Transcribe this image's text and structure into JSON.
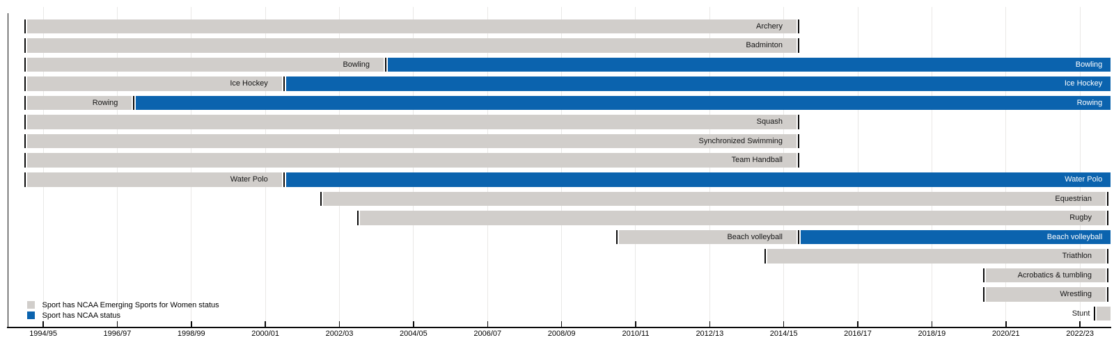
{
  "chart_data": {
    "type": "gantt",
    "title": "",
    "x_axis": {
      "range_start": 1994.0,
      "range_end": 2023.4,
      "ticks": [
        {
          "label": "1994/95",
          "year": 1994.5
        },
        {
          "label": "1996/97",
          "year": 1996.5
        },
        {
          "label": "1998/99",
          "year": 1998.5
        },
        {
          "label": "2000/01",
          "year": 2000.5
        },
        {
          "label": "2002/03",
          "year": 2002.5
        },
        {
          "label": "2004/05",
          "year": 2004.5
        },
        {
          "label": "2006/07",
          "year": 2006.5
        },
        {
          "label": "2008/09",
          "year": 2008.5
        },
        {
          "label": "2010/11",
          "year": 2010.5
        },
        {
          "label": "2012/13",
          "year": 2012.5
        },
        {
          "label": "2014/15",
          "year": 2014.5
        },
        {
          "label": "2016/17",
          "year": 2016.5
        },
        {
          "label": "2018/19",
          "year": 2018.5
        },
        {
          "label": "2020/21",
          "year": 2020.5
        },
        {
          "label": "2022/23",
          "year": 2022.5
        }
      ]
    },
    "legend": [
      {
        "status": "emerging",
        "label": "Sport has NCAA Emerging Sports for Women status",
        "color": "#d1cecb"
      },
      {
        "status": "ncaa",
        "label": "Sport has NCAA status",
        "color": "#0b63ae"
      }
    ],
    "colors": {
      "emerging": "#d1cecb",
      "ncaa": "#0b63ae",
      "gridline": "#e9e8e6",
      "axis": "#0a0a0a",
      "label_dark": "#141414",
      "label_light": "#ffffff"
    },
    "sports": [
      {
        "name": "Archery",
        "final_tick": true,
        "label_outside": false,
        "segments": [
          {
            "status": "emerging",
            "start": 1994.0,
            "end": 2014.9,
            "label": "Archery"
          }
        ]
      },
      {
        "name": "Badminton",
        "final_tick": true,
        "label_outside": false,
        "segments": [
          {
            "status": "emerging",
            "start": 1994.0,
            "end": 2014.9,
            "label": "Badminton"
          }
        ]
      },
      {
        "name": "Bowling",
        "final_tick": false,
        "label_outside": false,
        "segments": [
          {
            "status": "emerging",
            "start": 1994.0,
            "end": 2003.75,
            "label": "Bowling"
          },
          {
            "status": "ncaa",
            "start": 2003.75,
            "end": 2023.33,
            "label": "Bowling"
          }
        ]
      },
      {
        "name": "Ice Hockey",
        "final_tick": false,
        "label_outside": false,
        "segments": [
          {
            "status": "emerging",
            "start": 1994.0,
            "end": 2001.0,
            "label": "Ice Hockey"
          },
          {
            "status": "ncaa",
            "start": 2001.0,
            "end": 2023.33,
            "label": "Ice Hockey"
          }
        ]
      },
      {
        "name": "Rowing",
        "final_tick": false,
        "label_outside": false,
        "segments": [
          {
            "status": "emerging",
            "start": 1994.0,
            "end": 1996.95,
            "label": "Rowing"
          },
          {
            "status": "ncaa",
            "start": 1996.95,
            "end": 2023.33,
            "label": "Rowing"
          }
        ]
      },
      {
        "name": "Squash",
        "final_tick": true,
        "label_outside": false,
        "segments": [
          {
            "status": "emerging",
            "start": 1994.0,
            "end": 2014.9,
            "label": "Squash"
          }
        ]
      },
      {
        "name": "Synchronized Swimming",
        "final_tick": true,
        "label_outside": false,
        "segments": [
          {
            "status": "emerging",
            "start": 1994.0,
            "end": 2014.9,
            "label": "Synchronized Swimming"
          }
        ]
      },
      {
        "name": "Team Handball",
        "final_tick": true,
        "label_outside": false,
        "segments": [
          {
            "status": "emerging",
            "start": 1994.0,
            "end": 2014.9,
            "label": "Team Handball"
          }
        ]
      },
      {
        "name": "Water Polo",
        "final_tick": false,
        "label_outside": false,
        "segments": [
          {
            "status": "emerging",
            "start": 1994.0,
            "end": 2001.0,
            "label": "Water Polo"
          },
          {
            "status": "ncaa",
            "start": 2001.0,
            "end": 2023.33,
            "label": "Water Polo"
          }
        ]
      },
      {
        "name": "Equestrian",
        "final_tick": true,
        "label_outside": false,
        "segments": [
          {
            "status": "emerging",
            "start": 2002.0,
            "end": 2023.25,
            "label": "Equestrian"
          }
        ]
      },
      {
        "name": "Rugby",
        "final_tick": true,
        "label_outside": false,
        "segments": [
          {
            "status": "emerging",
            "start": 2003.0,
            "end": 2023.25,
            "label": "Rugby"
          }
        ]
      },
      {
        "name": "Beach volleyball",
        "final_tick": false,
        "label_outside": false,
        "segments": [
          {
            "status": "emerging",
            "start": 2010.0,
            "end": 2014.9,
            "label": "Beach volleyball"
          },
          {
            "status": "ncaa",
            "start": 2014.9,
            "end": 2023.33,
            "label": "Beach volleyball"
          }
        ]
      },
      {
        "name": "Triathlon",
        "final_tick": true,
        "label_outside": false,
        "segments": [
          {
            "status": "emerging",
            "start": 2014.0,
            "end": 2023.25,
            "label": "Triathlon"
          }
        ]
      },
      {
        "name": "Acrobatics & tumbling",
        "final_tick": true,
        "label_outside": false,
        "segments": [
          {
            "status": "emerging",
            "start": 2019.9,
            "end": 2023.25,
            "label": "Acrobatics & tumbling"
          }
        ]
      },
      {
        "name": "Wrestling",
        "final_tick": true,
        "label_outside": false,
        "segments": [
          {
            "status": "emerging",
            "start": 2019.9,
            "end": 2023.25,
            "label": "Wrestling"
          }
        ]
      },
      {
        "name": "Stunt",
        "final_tick": false,
        "label_outside": true,
        "segments": [
          {
            "status": "emerging",
            "start": 2022.9,
            "end": 2023.33,
            "label": null
          }
        ]
      }
    ]
  }
}
